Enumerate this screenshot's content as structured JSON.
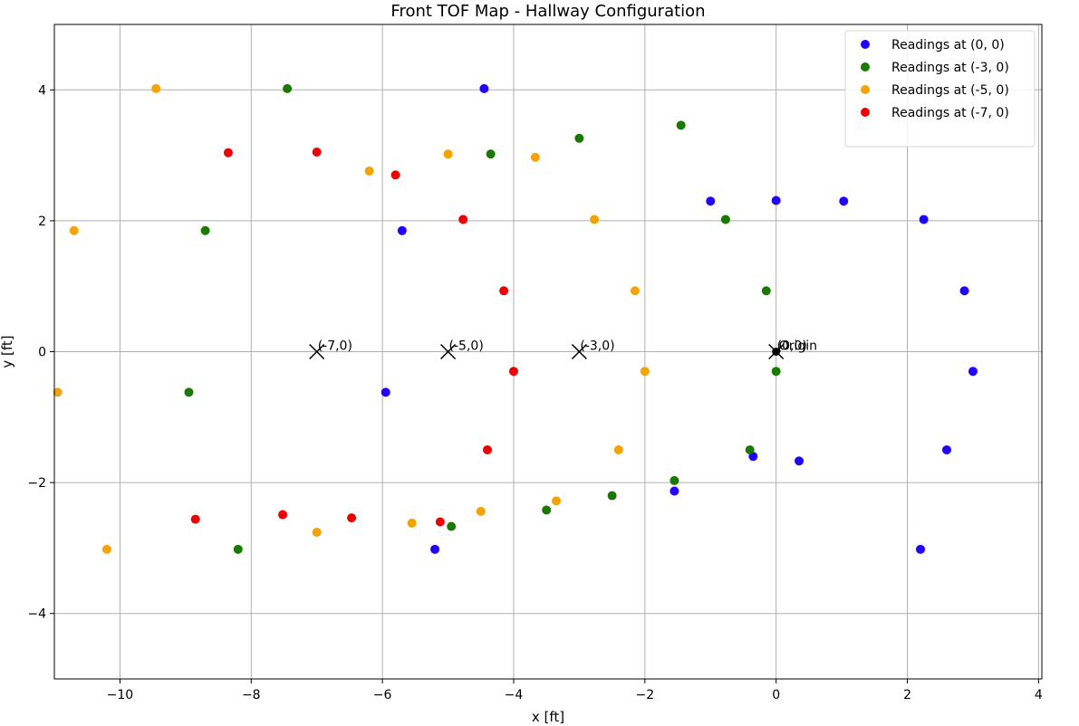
{
  "chart_data": {
    "type": "scatter",
    "title": "Front TOF Map - Hallway Configuration",
    "xlabel": "x [ft]",
    "ylabel": "y [ft]",
    "xlim": [
      -11,
      4.05
    ],
    "ylim": [
      -5,
      5
    ],
    "xticks": [
      -10,
      -8,
      -6,
      -4,
      -2,
      0,
      2,
      4
    ],
    "yticks": [
      -4,
      -2,
      0,
      2,
      4
    ],
    "xtick_labels": [
      "−10",
      "−8",
      "−6",
      "−4",
      "−2",
      "0",
      "2",
      "4"
    ],
    "ytick_labels": [
      "−4",
      "−2",
      "0",
      "2",
      "4"
    ],
    "grid": true,
    "legend_position": "top-right",
    "series": [
      {
        "name": "Readings at (0, 0)",
        "color": "#2200ff",
        "points": [
          [
            -4.45,
            4.02
          ],
          [
            -1.0,
            2.3
          ],
          [
            0.0,
            2.31
          ],
          [
            1.03,
            2.3
          ],
          [
            2.25,
            2.02
          ],
          [
            2.87,
            0.93
          ],
          [
            3.0,
            -0.3
          ],
          [
            2.6,
            -1.5
          ],
          [
            0.35,
            -1.67
          ],
          [
            -0.35,
            -1.6
          ],
          [
            -1.55,
            -2.13
          ],
          [
            2.2,
            -3.02
          ],
          [
            -5.2,
            -3.02
          ],
          [
            -5.95,
            -0.62
          ],
          [
            -5.7,
            1.85
          ]
        ]
      },
      {
        "name": "Readings at (-3, 0)",
        "color": "#1a7a00",
        "points": [
          [
            -7.45,
            4.02
          ],
          [
            -1.45,
            3.46
          ],
          [
            -3.0,
            3.26
          ],
          [
            -4.35,
            3.02
          ],
          [
            -0.77,
            2.02
          ],
          [
            -0.15,
            0.93
          ],
          [
            0.0,
            -0.3
          ],
          [
            -0.4,
            -1.5
          ],
          [
            -1.55,
            -1.97
          ],
          [
            -2.5,
            -2.2
          ],
          [
            -3.5,
            -2.42
          ],
          [
            -4.95,
            -2.67
          ],
          [
            -8.2,
            -3.02
          ],
          [
            -8.95,
            -0.62
          ],
          [
            -8.7,
            1.85
          ]
        ]
      },
      {
        "name": "Readings at (-5, 0)",
        "color": "#f5a300",
        "points": [
          [
            -9.45,
            4.02
          ],
          [
            -6.2,
            2.76
          ],
          [
            -5.0,
            3.02
          ],
          [
            -3.67,
            2.97
          ],
          [
            -2.77,
            2.02
          ],
          [
            -2.15,
            0.93
          ],
          [
            -2.0,
            -0.3
          ],
          [
            -2.4,
            -1.5
          ],
          [
            -3.35,
            -2.28
          ],
          [
            -4.5,
            -2.44
          ],
          [
            -5.55,
            -2.62
          ],
          [
            -7.0,
            -2.76
          ],
          [
            -10.2,
            -3.02
          ],
          [
            -10.95,
            -0.62
          ],
          [
            -10.7,
            1.85
          ]
        ]
      },
      {
        "name": "Readings at (-7, 0)",
        "color": "#ee0000",
        "points": [
          [
            -8.35,
            3.04
          ],
          [
            -7.0,
            3.05
          ],
          [
            -5.8,
            2.7
          ],
          [
            -4.77,
            2.02
          ],
          [
            -4.15,
            0.93
          ],
          [
            -4.0,
            -0.3
          ],
          [
            -4.4,
            -1.5
          ],
          [
            -5.12,
            -2.6
          ],
          [
            -6.47,
            -2.54
          ],
          [
            -7.52,
            -2.49
          ],
          [
            -8.85,
            -2.56
          ]
        ]
      }
    ],
    "markers": [
      {
        "label": "(-7,0)",
        "x": -7,
        "y": 0
      },
      {
        "label": "(-5,0)",
        "x": -5,
        "y": 0
      },
      {
        "label": "(-3,0)",
        "x": -3,
        "y": 0
      },
      {
        "label": "(0,0)",
        "x": 0,
        "y": 0
      }
    ],
    "origin_label": "Origin"
  }
}
